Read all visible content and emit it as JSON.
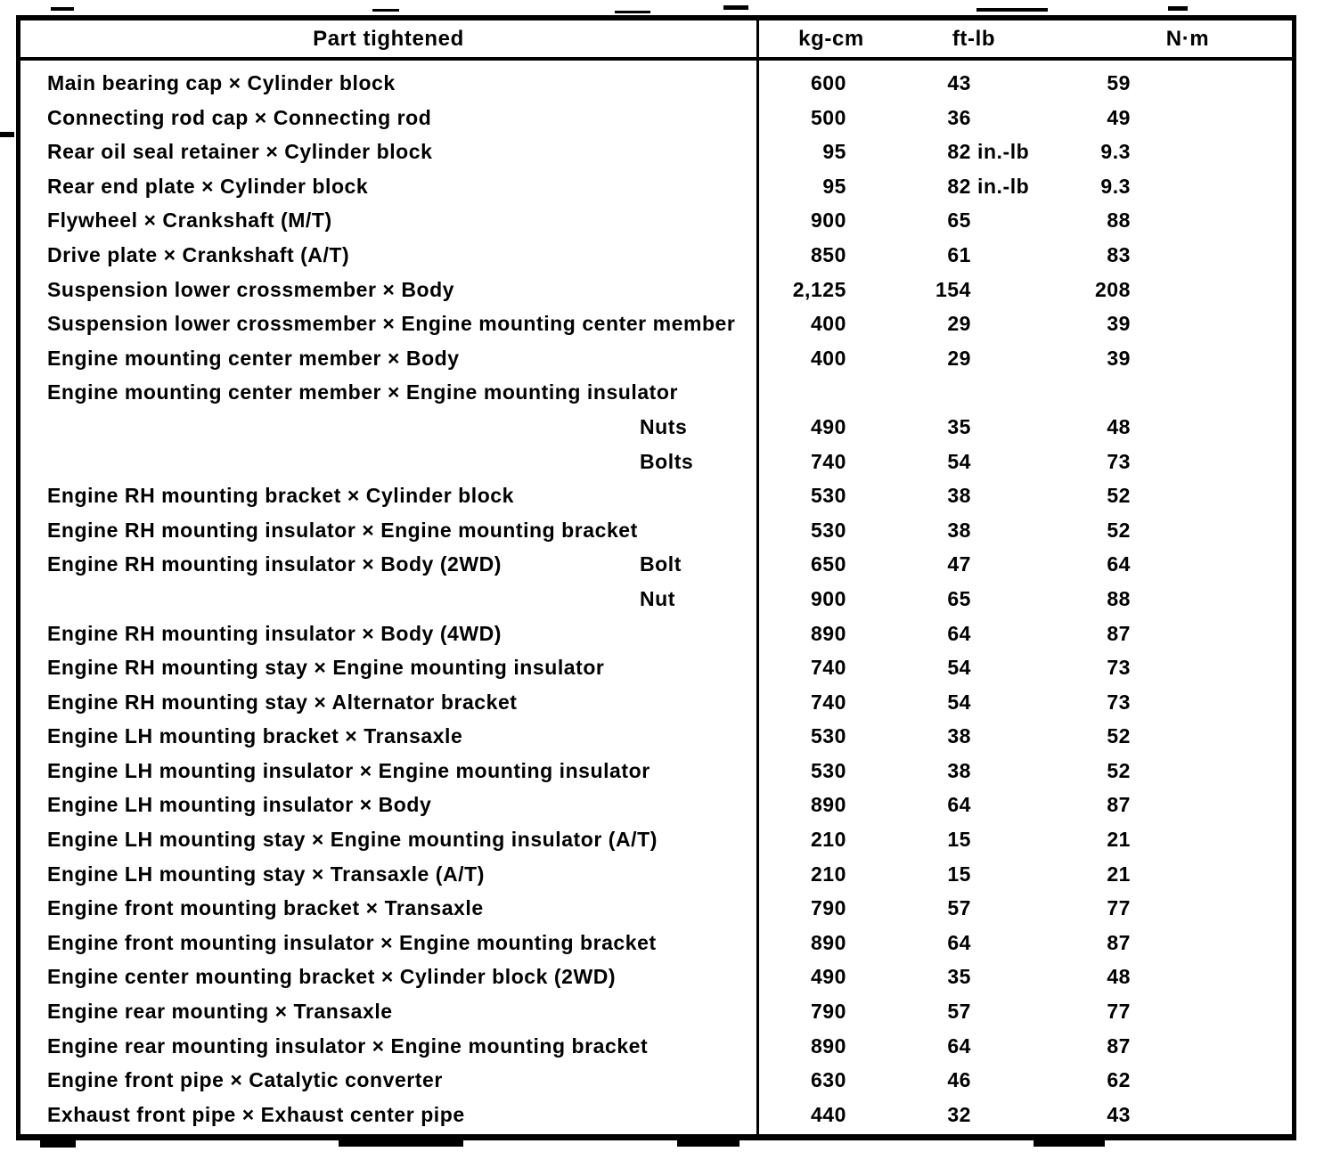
{
  "colors": {
    "ink": "#000000",
    "paper": "#ffffff"
  },
  "table": {
    "columns": {
      "part": "Part tightened",
      "kgcm": "kg-cm",
      "ftlb": "ft-lb",
      "nm": "N·m"
    },
    "rows": [
      {
        "part": "Main bearing cap × Cylinder block",
        "sub": "",
        "kgcm": "600",
        "ftlb": "43",
        "ftlb_suffix": "",
        "nm": "59"
      },
      {
        "part": "Connecting rod cap × Connecting rod",
        "sub": "",
        "kgcm": "500",
        "ftlb": "36",
        "ftlb_suffix": "",
        "nm": "49"
      },
      {
        "part": "Rear oil seal retainer × Cylinder block",
        "sub": "",
        "kgcm": "95",
        "ftlb": "82",
        "ftlb_suffix": "in.-lb",
        "nm": "9.3"
      },
      {
        "part": "Rear end plate × Cylinder block",
        "sub": "",
        "kgcm": "95",
        "ftlb": "82",
        "ftlb_suffix": "in.-lb",
        "nm": "9.3"
      },
      {
        "part": "Flywheel × Crankshaft (M/T)",
        "sub": "",
        "kgcm": "900",
        "ftlb": "65",
        "ftlb_suffix": "",
        "nm": "88"
      },
      {
        "part": "Drive plate × Crankshaft (A/T)",
        "sub": "",
        "kgcm": "850",
        "ftlb": "61",
        "ftlb_suffix": "",
        "nm": "83"
      },
      {
        "part": "Suspension lower crossmember × Body",
        "sub": "",
        "kgcm": "2,125",
        "ftlb": "154",
        "ftlb_suffix": "",
        "nm": "208"
      },
      {
        "part": "Suspension lower crossmember × Engine mounting center member",
        "sub": "",
        "kgcm": "400",
        "ftlb": "29",
        "ftlb_suffix": "",
        "nm": "39"
      },
      {
        "part": "Engine mounting center member × Body",
        "sub": "",
        "kgcm": "400",
        "ftlb": "29",
        "ftlb_suffix": "",
        "nm": "39"
      },
      {
        "part": "Engine mounting center member × Engine mounting insulator",
        "sub": "",
        "kgcm": "",
        "ftlb": "",
        "ftlb_suffix": "",
        "nm": ""
      },
      {
        "part": "",
        "sub": "Nuts",
        "kgcm": "490",
        "ftlb": "35",
        "ftlb_suffix": "",
        "nm": "48"
      },
      {
        "part": "",
        "sub": "Bolts",
        "kgcm": "740",
        "ftlb": "54",
        "ftlb_suffix": "",
        "nm": "73"
      },
      {
        "part": "Engine RH mounting bracket × Cylinder block",
        "sub": "",
        "kgcm": "530",
        "ftlb": "38",
        "ftlb_suffix": "",
        "nm": "52"
      },
      {
        "part": "Engine RH mounting insulator × Engine mounting bracket",
        "sub": "",
        "kgcm": "530",
        "ftlb": "38",
        "ftlb_suffix": "",
        "nm": "52"
      },
      {
        "part": "Engine RH mounting insulator × Body (2WD)",
        "sub": "Bolt",
        "kgcm": "650",
        "ftlb": "47",
        "ftlb_suffix": "",
        "nm": "64"
      },
      {
        "part": "",
        "sub": "Nut",
        "kgcm": "900",
        "ftlb": "65",
        "ftlb_suffix": "",
        "nm": "88"
      },
      {
        "part": "Engine RH mounting insulator × Body (4WD)",
        "sub": "",
        "kgcm": "890",
        "ftlb": "64",
        "ftlb_suffix": "",
        "nm": "87"
      },
      {
        "part": "Engine RH mounting stay × Engine mounting insulator",
        "sub": "",
        "kgcm": "740",
        "ftlb": "54",
        "ftlb_suffix": "",
        "nm": "73"
      },
      {
        "part": "Engine RH mounting stay × Alternator bracket",
        "sub": "",
        "kgcm": "740",
        "ftlb": "54",
        "ftlb_suffix": "",
        "nm": "73"
      },
      {
        "part": "Engine LH mounting bracket × Transaxle",
        "sub": "",
        "kgcm": "530",
        "ftlb": "38",
        "ftlb_suffix": "",
        "nm": "52"
      },
      {
        "part": "Engine LH mounting insulator × Engine mounting insulator",
        "sub": "",
        "kgcm": "530",
        "ftlb": "38",
        "ftlb_suffix": "",
        "nm": "52"
      },
      {
        "part": "Engine LH mounting insulator × Body",
        "sub": "",
        "kgcm": "890",
        "ftlb": "64",
        "ftlb_suffix": "",
        "nm": "87"
      },
      {
        "part": "Engine LH mounting stay × Engine mounting insulator (A/T)",
        "sub": "",
        "kgcm": "210",
        "ftlb": "15",
        "ftlb_suffix": "",
        "nm": "21"
      },
      {
        "part": "Engine LH mounting stay × Transaxle (A/T)",
        "sub": "",
        "kgcm": "210",
        "ftlb": "15",
        "ftlb_suffix": "",
        "nm": "21"
      },
      {
        "part": "Engine front mounting bracket × Transaxle",
        "sub": "",
        "kgcm": "790",
        "ftlb": "57",
        "ftlb_suffix": "",
        "nm": "77"
      },
      {
        "part": "Engine front mounting insulator × Engine mounting bracket",
        "sub": "",
        "kgcm": "890",
        "ftlb": "64",
        "ftlb_suffix": "",
        "nm": "87"
      },
      {
        "part": "Engine center mounting bracket × Cylinder block (2WD)",
        "sub": "",
        "kgcm": "490",
        "ftlb": "35",
        "ftlb_suffix": "",
        "nm": "48"
      },
      {
        "part": "Engine rear mounting × Transaxle",
        "sub": "",
        "kgcm": "790",
        "ftlb": "57",
        "ftlb_suffix": "",
        "nm": "77"
      },
      {
        "part": "Engine rear mounting insulator × Engine mounting bracket",
        "sub": "",
        "kgcm": "890",
        "ftlb": "64",
        "ftlb_suffix": "",
        "nm": "87"
      },
      {
        "part": "Engine front pipe × Catalytic converter",
        "sub": "",
        "kgcm": "630",
        "ftlb": "46",
        "ftlb_suffix": "",
        "nm": "62"
      },
      {
        "part": "Exhaust front pipe × Exhaust center pipe",
        "sub": "",
        "kgcm": "440",
        "ftlb": "32",
        "ftlb_suffix": "",
        "nm": "43"
      }
    ]
  }
}
